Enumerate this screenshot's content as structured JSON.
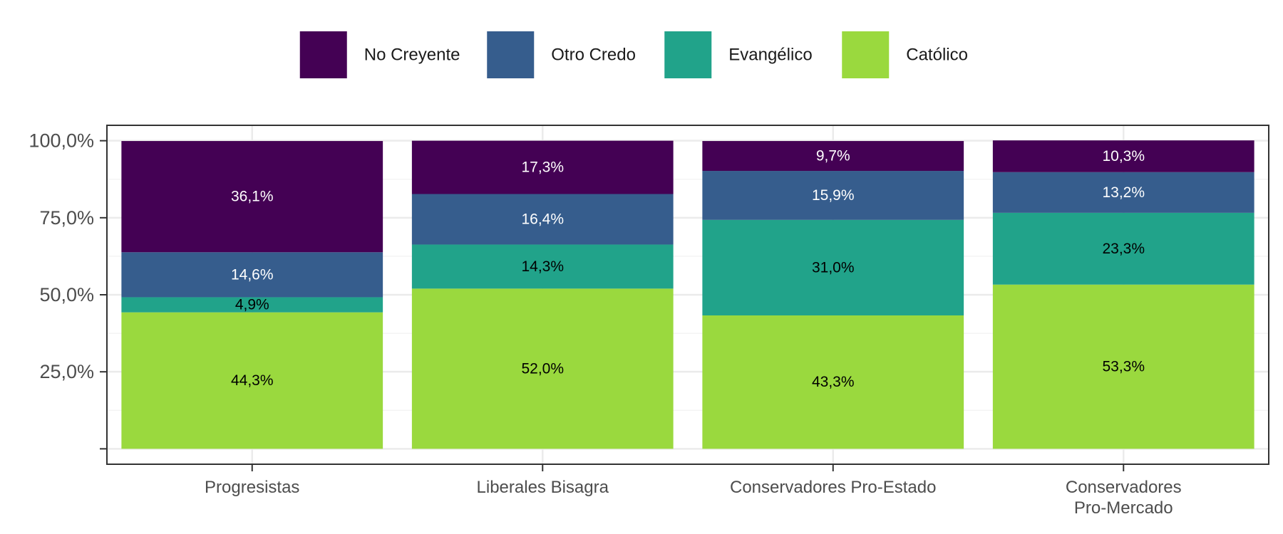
{
  "chart_data": {
    "type": "bar",
    "stacked": true,
    "percent_stacked": true,
    "categories": [
      [
        "Progresistas"
      ],
      [
        "Liberales Bisagra"
      ],
      [
        "Conservadores Pro-Estado"
      ],
      [
        "Conservadores",
        "Pro-Mercado"
      ]
    ],
    "series": [
      {
        "name": "Católico",
        "color": "#9ad93e",
        "label_color": "#000000",
        "values": [
          44.3,
          52.0,
          43.3,
          53.3
        ],
        "labels": [
          "44,3%",
          "52,0%",
          "43,3%",
          "53,3%"
        ]
      },
      {
        "name": "Evangélico",
        "color": "#21a38a",
        "label_color": "#000000",
        "values": [
          4.9,
          14.3,
          31.0,
          23.3
        ],
        "labels": [
          "4,9%",
          "14,3%",
          "31,0%",
          "23,3%"
        ]
      },
      {
        "name": "Otro Credo",
        "color": "#365d8d",
        "label_color": "#ffffff",
        "values": [
          14.6,
          16.4,
          15.9,
          13.2
        ],
        "labels": [
          "14,6%",
          "16,4%",
          "15,9%",
          "13,2%"
        ]
      },
      {
        "name": "No Creyente",
        "color": "#440154",
        "label_color": "#ffffff",
        "values": [
          36.1,
          17.3,
          9.7,
          10.3
        ],
        "labels": [
          "36,1%",
          "17,3%",
          "9,7%",
          "10,3%"
        ]
      }
    ],
    "legend_order": [
      "No Creyente",
      "Otro Credo",
      "Evangélico",
      "Católico"
    ],
    "legend_position": "top",
    "y_ticks": [
      0,
      25,
      50,
      75,
      100
    ],
    "y_tick_labels": [
      "",
      "25,0%",
      "50,0%",
      "75,0%",
      "100,0%"
    ],
    "ylim": [
      -5,
      105
    ],
    "title": "",
    "xlabel": "",
    "ylabel": "",
    "grid": true
  }
}
